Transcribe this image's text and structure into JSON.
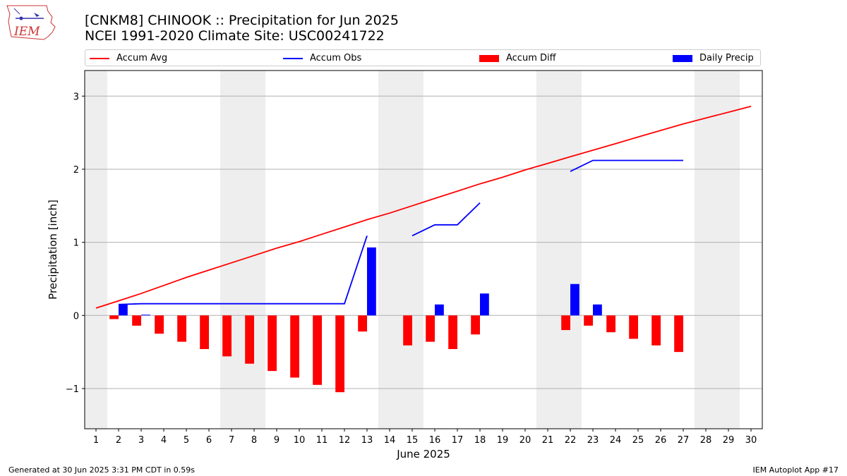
{
  "title_line1": "[CNKM8] CHINOOK :: Precipitation for Jun 2025",
  "title_line2": "NCEI 1991-2020 Climate Site: USC00241722",
  "logo_text": "IEM",
  "footer_left": "Generated at 30 Jun 2025 3:31 PM CDT in 0.59s",
  "footer_right": "IEM Autoplot App #17",
  "colors": {
    "avg": "#ff0000",
    "obs": "#0000ff",
    "diff": "#ff0000",
    "daily": "#0000ff",
    "weekend": "#eeeeee",
    "grid": "#b0b0b0"
  },
  "chart_data": {
    "type": "bar",
    "xlabel": "June 2025",
    "ylabel": "Precipitation [inch]",
    "xlim": [
      0.5,
      30.5
    ],
    "ylim": [
      -1.55,
      3.35
    ],
    "yticks": [
      -1,
      0,
      1,
      2,
      3
    ],
    "ytick_labels": [
      "−1",
      "0",
      "1",
      "2",
      "3"
    ],
    "xticks": [
      1,
      2,
      3,
      4,
      5,
      6,
      7,
      8,
      9,
      10,
      11,
      12,
      13,
      14,
      15,
      16,
      17,
      18,
      19,
      20,
      21,
      22,
      23,
      24,
      25,
      26,
      27,
      28,
      29,
      30
    ],
    "xtick_labels": [
      "1",
      "2",
      "3",
      "4",
      "5",
      "6",
      "7",
      "8",
      "9",
      "10",
      "11",
      "12",
      "13",
      "14",
      "15",
      "16",
      "17",
      "18",
      "19",
      "20",
      "21",
      "22",
      "23",
      "24",
      "25",
      "26",
      "27",
      "28",
      "29",
      "30"
    ],
    "grid": "horizontal",
    "weekend_shading": [
      [
        0.5,
        1.5
      ],
      [
        6.5,
        8.5
      ],
      [
        13.5,
        15.5
      ],
      [
        20.5,
        22.5
      ],
      [
        27.5,
        29.5
      ]
    ],
    "legend": {
      "placement": "top",
      "entries": [
        "Accum Avg",
        "Accum Obs",
        "Accum Diff",
        "Daily Precip"
      ]
    },
    "series": [
      {
        "name": "Accum Avg",
        "type": "line",
        "x": [
          1,
          2,
          3,
          4,
          5,
          6,
          7,
          8,
          9,
          10,
          11,
          12,
          13,
          14,
          15,
          16,
          17,
          18,
          19,
          20,
          21,
          22,
          23,
          24,
          25,
          26,
          27,
          28,
          29,
          30
        ],
        "values": [
          0.1,
          0.2,
          0.3,
          0.41,
          0.52,
          0.62,
          0.72,
          0.82,
          0.92,
          1.01,
          1.11,
          1.21,
          1.31,
          1.4,
          1.5,
          1.6,
          1.7,
          1.8,
          1.89,
          1.99,
          2.08,
          2.17,
          2.26,
          2.35,
          2.44,
          2.53,
          2.62,
          2.7,
          2.78,
          2.86
        ]
      },
      {
        "name": "Accum Obs",
        "type": "line",
        "x": [
          2,
          3,
          4,
          5,
          6,
          7,
          8,
          9,
          10,
          11,
          12,
          13,
          14,
          15,
          16,
          17,
          18,
          19,
          20,
          21,
          22,
          23,
          24,
          25,
          26,
          27
        ],
        "values": [
          0.15,
          0.16,
          0.16,
          0.16,
          0.16,
          0.16,
          0.16,
          0.16,
          0.16,
          0.16,
          0.16,
          1.09,
          null,
          1.09,
          1.24,
          1.24,
          1.54,
          null,
          null,
          null,
          1.97,
          2.12,
          2.12,
          2.12,
          2.12,
          2.12
        ]
      },
      {
        "name": "Accum Diff",
        "type": "bar",
        "x": [
          2,
          3,
          4,
          5,
          6,
          7,
          8,
          9,
          10,
          11,
          12,
          13,
          15,
          16,
          17,
          18,
          22,
          23,
          24,
          25,
          26,
          27
        ],
        "values": [
          -0.05,
          -0.14,
          -0.25,
          -0.36,
          -0.46,
          -0.56,
          -0.66,
          -0.76,
          -0.85,
          -0.95,
          -1.05,
          -0.22,
          -0.41,
          -0.36,
          -0.46,
          -0.26,
          -0.2,
          -0.14,
          -0.23,
          -0.32,
          -0.41,
          -0.5
        ]
      },
      {
        "name": "Daily Precip",
        "type": "bar",
        "x": [
          2,
          3,
          13,
          16,
          18,
          22,
          23
        ],
        "values": [
          0.15,
          0.01,
          0.93,
          0.15,
          0.3,
          0.43,
          0.15
        ]
      }
    ]
  }
}
